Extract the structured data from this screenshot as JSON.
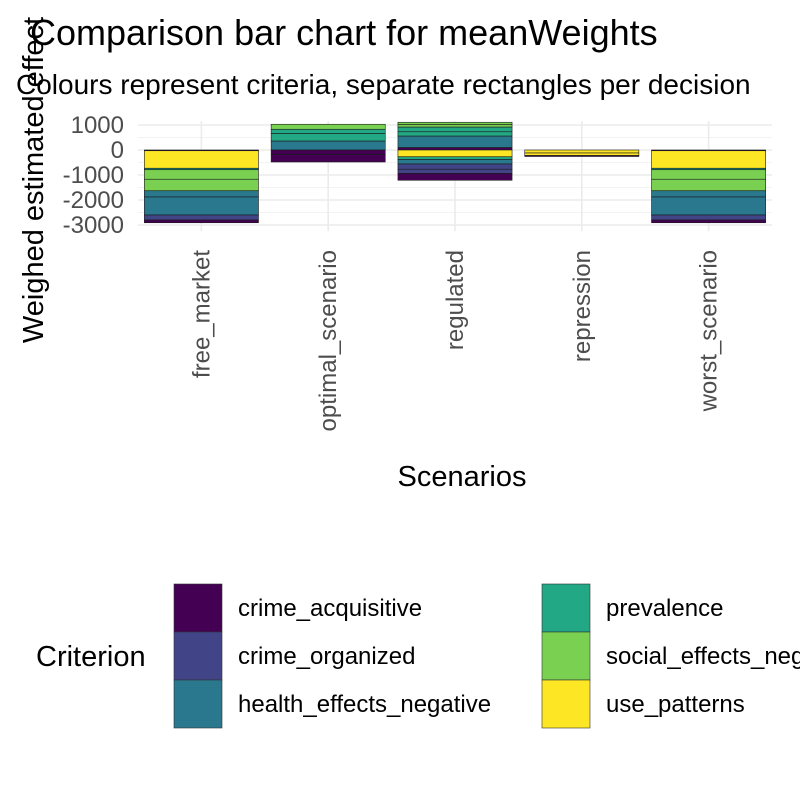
{
  "chart_data": {
    "type": "bar",
    "stacked": true,
    "title": "Comparison bar chart for meanWeights",
    "subtitle": "Colours represent criteria, separate rectangles per decision",
    "xlabel": "Scenarios",
    "ylabel": "Weighed estimated effect",
    "ylim": [
      -3250,
      1150
    ],
    "y_ticks": [
      1000,
      0,
      -1000,
      -2000,
      -3000
    ],
    "y_tick_labels": [
      "1000",
      "0",
      "-1000",
      "-2000",
      "-3000"
    ],
    "grid": true,
    "categories": [
      "free_market",
      "optimal_scenario",
      "regulated",
      "repression",
      "worst_scenario"
    ],
    "legend": {
      "title": "Criterion",
      "position": "bottom",
      "entries": [
        {
          "label": "crime_acquisitive",
          "color": "#440154"
        },
        {
          "label": "crime_organized",
          "color": "#414487"
        },
        {
          "label": "health_effects_negative",
          "color": "#2A788E"
        },
        {
          "label": "prevalence",
          "color": "#22A884"
        },
        {
          "label": "social_effects_negative",
          "color": "#7AD151"
        },
        {
          "label": "use_patterns",
          "color": "#FDE725"
        }
      ]
    },
    "segments": [
      {
        "category": "free_market",
        "criterion": "crime_acquisitive",
        "value": -30
      },
      {
        "category": "free_market",
        "criterion": "use_patterns",
        "value": -700
      },
      {
        "category": "free_market",
        "criterion": "prevalence",
        "value": -60
      },
      {
        "category": "free_market",
        "criterion": "social_effects_negative",
        "value": -380
      },
      {
        "category": "free_market",
        "criterion": "social_effects_negative",
        "value": -460
      },
      {
        "category": "free_market",
        "criterion": "health_effects_negative",
        "value": -250
      },
      {
        "category": "free_market",
        "criterion": "health_effects_negative",
        "value": -720
      },
      {
        "category": "free_market",
        "criterion": "crime_organized",
        "value": -200
      },
      {
        "category": "free_market",
        "criterion": "crime_acquisitive",
        "value": -110
      },
      {
        "category": "optimal_scenario",
        "criterion": "health_effects_negative",
        "value": 360
      },
      {
        "category": "optimal_scenario",
        "criterion": "prevalence",
        "value": 300
      },
      {
        "category": "optimal_scenario",
        "criterion": "prevalence",
        "value": 170
      },
      {
        "category": "optimal_scenario",
        "criterion": "social_effects_negative",
        "value": 200
      },
      {
        "category": "optimal_scenario",
        "criterion": "crime_acquisitive",
        "value": -180
      },
      {
        "category": "optimal_scenario",
        "criterion": "crime_acquisitive",
        "value": -300
      },
      {
        "category": "regulated",
        "criterion": "crime_acquisitive",
        "value": 100
      },
      {
        "category": "regulated",
        "criterion": "health_effects_negative",
        "value": 460
      },
      {
        "category": "regulated",
        "criterion": "prevalence",
        "value": 170
      },
      {
        "category": "regulated",
        "criterion": "prevalence",
        "value": 190
      },
      {
        "category": "regulated",
        "criterion": "social_effects_negative",
        "value": 100
      },
      {
        "category": "regulated",
        "criterion": "social_effects_negative",
        "value": 90
      },
      {
        "category": "regulated",
        "criterion": "use_patterns",
        "value": -270
      },
      {
        "category": "regulated",
        "criterion": "prevalence",
        "value": -110
      },
      {
        "category": "regulated",
        "criterion": "health_effects_negative",
        "value": -180
      },
      {
        "category": "regulated",
        "criterion": "crime_organized",
        "value": -210
      },
      {
        "category": "regulated",
        "criterion": "crime_organized",
        "value": -170
      },
      {
        "category": "regulated",
        "criterion": "crime_acquisitive",
        "value": -270
      },
      {
        "category": "repression",
        "criterion": "use_patterns",
        "value": -120
      },
      {
        "category": "repression",
        "criterion": "use_patterns",
        "value": -100
      },
      {
        "category": "repression",
        "criterion": "crime_acquisitive",
        "value": -40
      },
      {
        "category": "worst_scenario",
        "criterion": "crime_acquisitive",
        "value": -30
      },
      {
        "category": "worst_scenario",
        "criterion": "use_patterns",
        "value": -700
      },
      {
        "category": "worst_scenario",
        "criterion": "prevalence",
        "value": -60
      },
      {
        "category": "worst_scenario",
        "criterion": "social_effects_negative",
        "value": -380
      },
      {
        "category": "worst_scenario",
        "criterion": "social_effects_negative",
        "value": -460
      },
      {
        "category": "worst_scenario",
        "criterion": "health_effects_negative",
        "value": -250
      },
      {
        "category": "worst_scenario",
        "criterion": "health_effects_negative",
        "value": -720
      },
      {
        "category": "worst_scenario",
        "criterion": "crime_organized",
        "value": -200
      },
      {
        "category": "worst_scenario",
        "criterion": "crime_acquisitive",
        "value": -110
      }
    ]
  }
}
